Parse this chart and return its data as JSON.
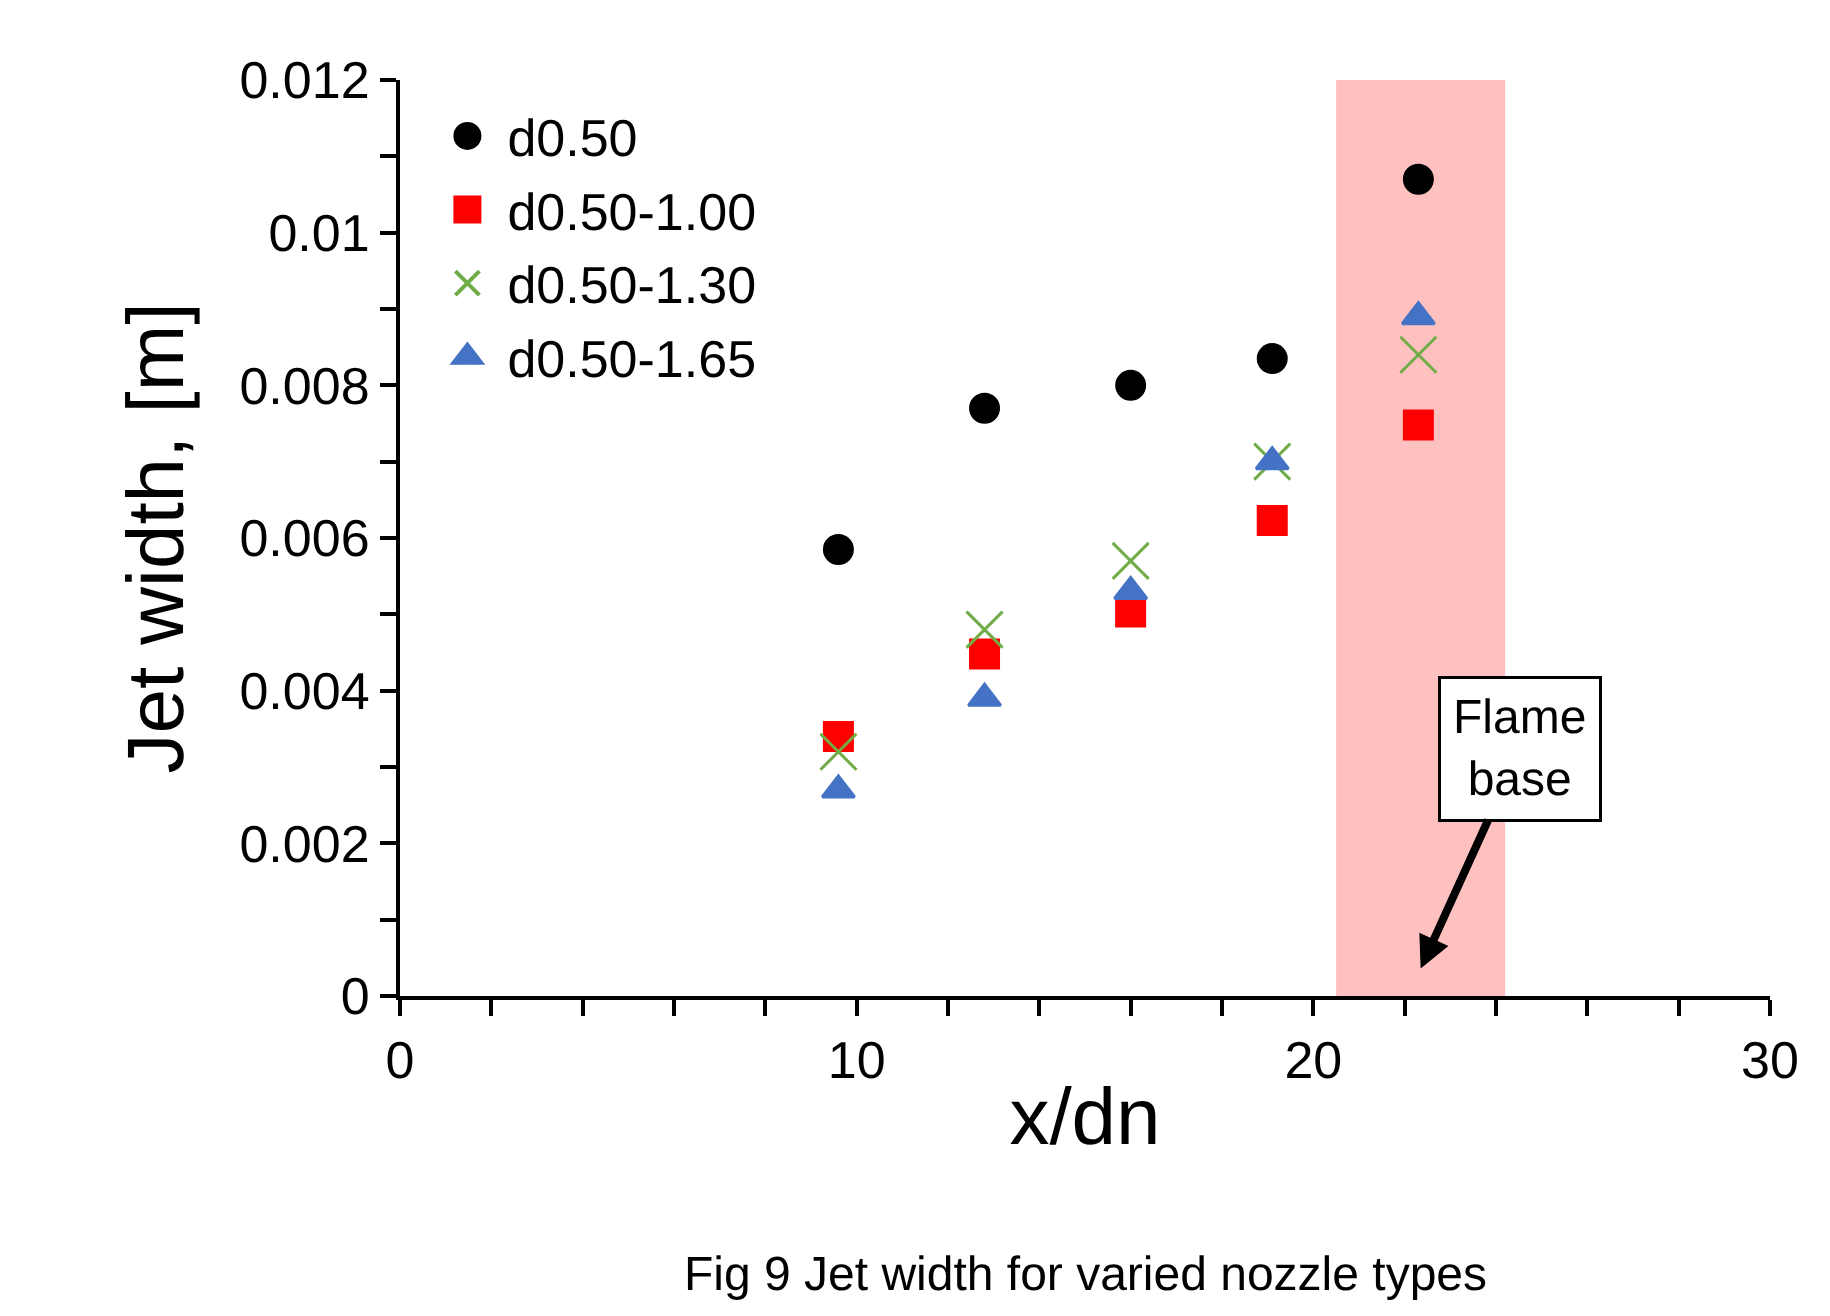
{
  "chart_data": {
    "type": "scatter",
    "xlabel": "x/dn",
    "ylabel": "Jet width, [m]",
    "x": [
      9.6,
      12.8,
      16.0,
      19.1,
      22.3
    ],
    "series": [
      {
        "name": "d0.50",
        "color": "#000000",
        "marker": "circle",
        "values": [
          0.00585,
          0.0077,
          0.008,
          0.00835,
          0.0107
        ]
      },
      {
        "name": "d0.50-1.00",
        "color": "#ff0000",
        "marker": "square",
        "values": [
          0.0034,
          0.00448,
          0.00503,
          0.00623,
          0.00748
        ]
      },
      {
        "name": "d0.50-1.30",
        "color": "#70ad47",
        "marker": "cross",
        "values": [
          0.0032,
          0.0048,
          0.0057,
          0.007,
          0.0084
        ]
      },
      {
        "name": "d0.50-1.65",
        "color": "#4472c4",
        "marker": "triangle",
        "values": [
          0.0027,
          0.0039,
          0.0053,
          0.007,
          0.0089
        ]
      }
    ],
    "xlim": [
      0,
      30
    ],
    "xticks": [
      0,
      10,
      20,
      30
    ],
    "ylim": [
      0,
      0.012
    ],
    "yticks": [
      0,
      0.002,
      0.004,
      0.006,
      0.008,
      0.01,
      0.012
    ],
    "bands": [
      {
        "axis": "x",
        "from": 20.5,
        "to": 24.2,
        "color": "#ffc0c0"
      }
    ],
    "annotations": [
      "Flame\nbase",
      "Fig 9 Jet width for varied nozzle types"
    ],
    "grid": false,
    "legend": "top left"
  }
}
